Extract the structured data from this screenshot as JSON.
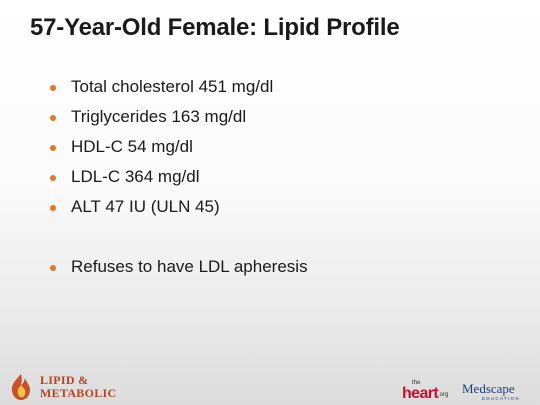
{
  "slide": {
    "title": "57-Year-Old Female: Lipid Profile",
    "bullets": [
      "Total cholesterol 451 mg/dl",
      "Triglycerides 163 mg/dl",
      "HDL-C 54 mg/dl",
      "LDL-C 364 mg/dl",
      "ALT 47 IU (ULN 45)",
      "Refuses to have LDL apheresis"
    ],
    "bullet_color": "#e2762a"
  },
  "footer": {
    "lipid_logo": {
      "line1": "LIPID &",
      "line2": "METABOLIC",
      "color": "#b8431f"
    },
    "heart_logo": {
      "the": "the",
      "main": "heart",
      "org": ".org"
    },
    "medscape_logo": {
      "main": "Medscape",
      "sub": "EDUCATION"
    }
  }
}
